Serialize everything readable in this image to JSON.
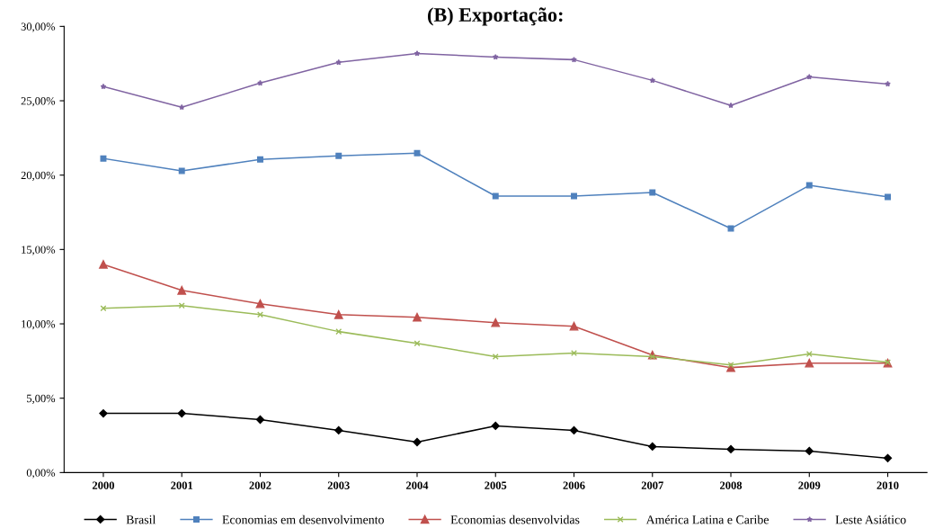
{
  "chart_data": {
    "type": "line",
    "title": "(B) Exportação:",
    "categories": [
      "2000",
      "2001",
      "2002",
      "2003",
      "2004",
      "2005",
      "2006",
      "2007",
      "2008",
      "2009",
      "2010"
    ],
    "series": [
      {
        "name": "Brasil",
        "color": "#000000",
        "marker": "diamond",
        "values": [
          3.98,
          3.98,
          3.56,
          2.84,
          2.05,
          3.14,
          2.84,
          1.75,
          1.57,
          1.45,
          0.97
        ]
      },
      {
        "name": "Economias em desenvolvimento",
        "color": "#4f81bd",
        "marker": "square",
        "values": [
          21.12,
          20.28,
          21.06,
          21.3,
          21.48,
          18.59,
          18.59,
          18.83,
          16.41,
          19.31,
          18.53
        ]
      },
      {
        "name": "Economias desenvolvidas",
        "color": "#c0504d",
        "marker": "triangle",
        "values": [
          14.0,
          12.25,
          11.35,
          10.62,
          10.44,
          10.08,
          9.84,
          7.9,
          7.06,
          7.36,
          7.36
        ]
      },
      {
        "name": "América Latina e Caribe",
        "color": "#9bbb59",
        "marker": "cross",
        "values": [
          11.04,
          11.23,
          10.62,
          9.48,
          8.69,
          7.79,
          8.03,
          7.79,
          7.24,
          7.97,
          7.42
        ]
      },
      {
        "name": "Leste Asiático",
        "color": "#8064a2",
        "marker": "star",
        "values": [
          25.95,
          24.56,
          26.19,
          27.58,
          28.18,
          27.94,
          27.76,
          26.37,
          24.68,
          26.6,
          26.13
        ]
      }
    ],
    "ylim": [
      0,
      30
    ],
    "yticks": [
      {
        "value": 0,
        "label": "0,00%"
      },
      {
        "value": 5,
        "label": "5,00%"
      },
      {
        "value": 10,
        "label": "10,00%"
      },
      {
        "value": 15,
        "label": "15,00%"
      },
      {
        "value": 20,
        "label": "20,00%"
      },
      {
        "value": 25,
        "label": "25,00%"
      },
      {
        "value": 30,
        "label": "30,00%"
      }
    ],
    "grid": false,
    "legend": "bottom",
    "line_style": "solid"
  }
}
